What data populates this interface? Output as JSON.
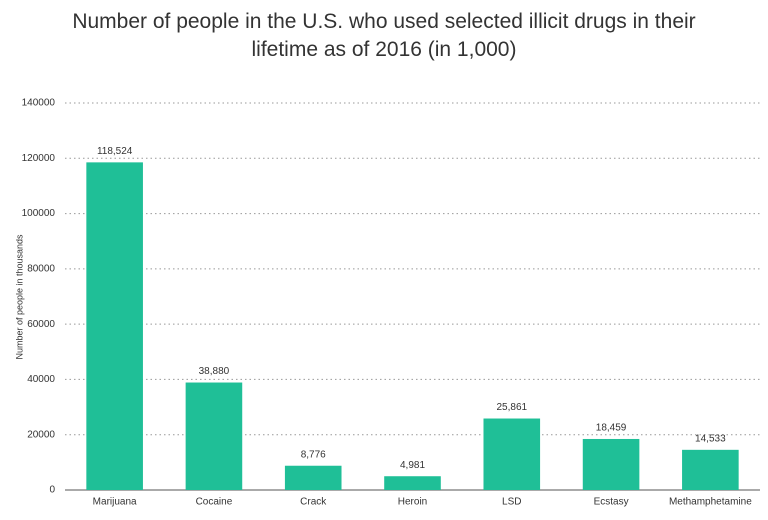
{
  "chart_data": {
    "type": "bar",
    "title": "Number of people in the U.S. who used selected illicit drugs in their lifetime as of 2016 (in 1,000)",
    "y_label": "Number of people in thousands",
    "categories": [
      "Marijuana",
      "Cocaine",
      "Crack",
      "Heroin",
      "LSD",
      "Ecstasy",
      "Methamphetamine"
    ],
    "values": [
      118524,
      38880,
      8776,
      4981,
      25861,
      18459,
      14533
    ],
    "value_labels": [
      "118,524",
      "38,880",
      "8,776",
      "4,981",
      "25,861",
      "18,459",
      "14,533"
    ],
    "color": "#1fbf97",
    "ylim": [
      0,
      140000
    ],
    "yticks": [
      0,
      20000,
      40000,
      60000,
      80000,
      100000,
      120000,
      140000
    ],
    "grid": true
  }
}
